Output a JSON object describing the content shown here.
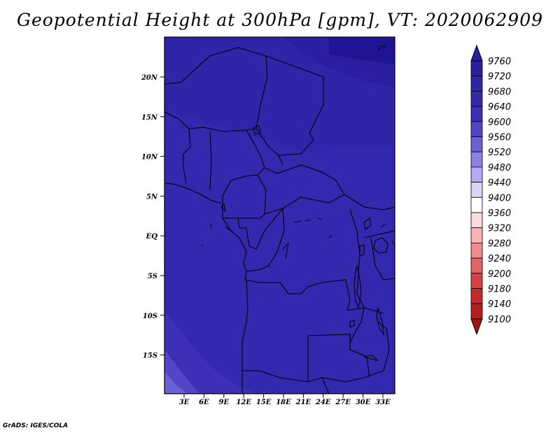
{
  "title": "Geopotential Height at 300hPa [gpm], VT: 2020062909",
  "footer": "GrADS: IGES/COLA",
  "map": {
    "lat_labels": [
      "20N",
      "15N",
      "10N",
      "5N",
      "EQ",
      "5S",
      "10S",
      "15S"
    ],
    "lon_labels": [
      "3E",
      "6E",
      "9E",
      "12E",
      "15E",
      "18E",
      "21E",
      "24E",
      "27E",
      "30E",
      "33E"
    ]
  },
  "colorbar": {
    "levels": [
      9760,
      9720,
      9680,
      9640,
      9600,
      9560,
      9520,
      9480,
      9440,
      9400,
      9360,
      9320,
      9280,
      9240,
      9200,
      9180,
      9140,
      9100
    ],
    "colors": [
      "#2a1fa0",
      "#2e26a8",
      "#3329ae",
      "#3c30b6",
      "#5346c6",
      "#6d60d6",
      "#8c82e6",
      "#b3acf0",
      "#d8d6f8",
      "#ffffff",
      "#fadada",
      "#f5b3b3",
      "#ec8c8c",
      "#e06464",
      "#d54242",
      "#c52a2a",
      "#b41e1e",
      "#a01414"
    ]
  },
  "chart_data": {
    "type": "heatmap",
    "title": "Geopotential Height at 300hPa [gpm], VT: 2020062909",
    "units": "gpm",
    "xlabel": "",
    "ylabel": "",
    "x_ticks": [
      "3E",
      "6E",
      "9E",
      "12E",
      "15E",
      "18E",
      "21E",
      "24E",
      "27E",
      "30E",
      "33E"
    ],
    "y_ticks": [
      "20N",
      "15N",
      "10N",
      "5N",
      "EQ",
      "5S",
      "10S",
      "15S"
    ],
    "xlim": [
      0,
      35
    ],
    "ylim": [
      -20,
      25
    ],
    "levels": [
      9100,
      9140,
      9180,
      9200,
      9240,
      9280,
      9320,
      9360,
      9400,
      9440,
      9480,
      9520,
      9560,
      9600,
      9640,
      9680,
      9720,
      9760
    ],
    "fields": [
      {
        "region": "northeast corner",
        "range": [
          9720,
          9760
        ]
      },
      {
        "region": "northern band",
        "range": [
          9680,
          9720
        ]
      },
      {
        "region": "central bulk",
        "range": [
          9640,
          9680
        ]
      },
      {
        "region": "southwest band",
        "range": [
          9600,
          9640
        ]
      },
      {
        "region": "far southwest corner",
        "range": [
          9560,
          9600
        ]
      }
    ]
  }
}
